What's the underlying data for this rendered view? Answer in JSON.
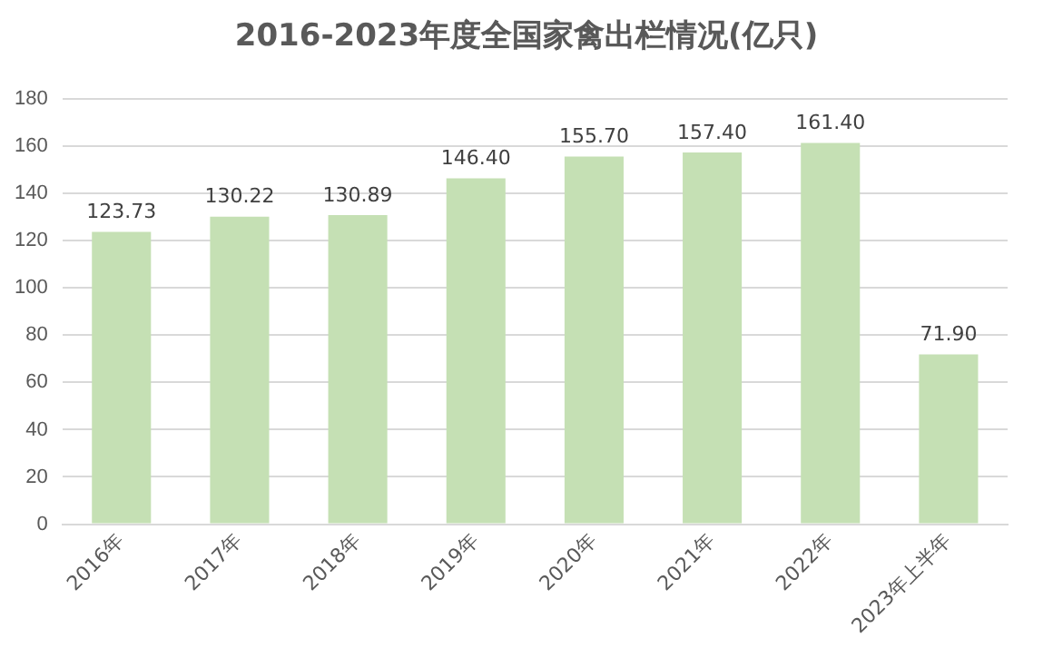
{
  "chart_data": {
    "type": "bar",
    "title": "2016-2023年度全国家禽出栏情况(亿只)",
    "categories": [
      "2016年",
      "2017年",
      "2018年",
      "2019年",
      "2020年",
      "2021年",
      "2022年",
      "2023年上半年"
    ],
    "values": [
      123.73,
      130.22,
      130.89,
      146.4,
      155.7,
      157.4,
      161.4,
      71.9
    ],
    "value_labels": [
      "123.73",
      "130.22",
      "130.89",
      "146.40",
      "155.70",
      "157.40",
      "161.40",
      "71.90"
    ],
    "color": "#c5e0b4",
    "ylim": [
      0,
      180
    ],
    "yticks": [
      0,
      20,
      40,
      60,
      80,
      100,
      120,
      140,
      160,
      180
    ],
    "grid": "y",
    "legend": false
  }
}
